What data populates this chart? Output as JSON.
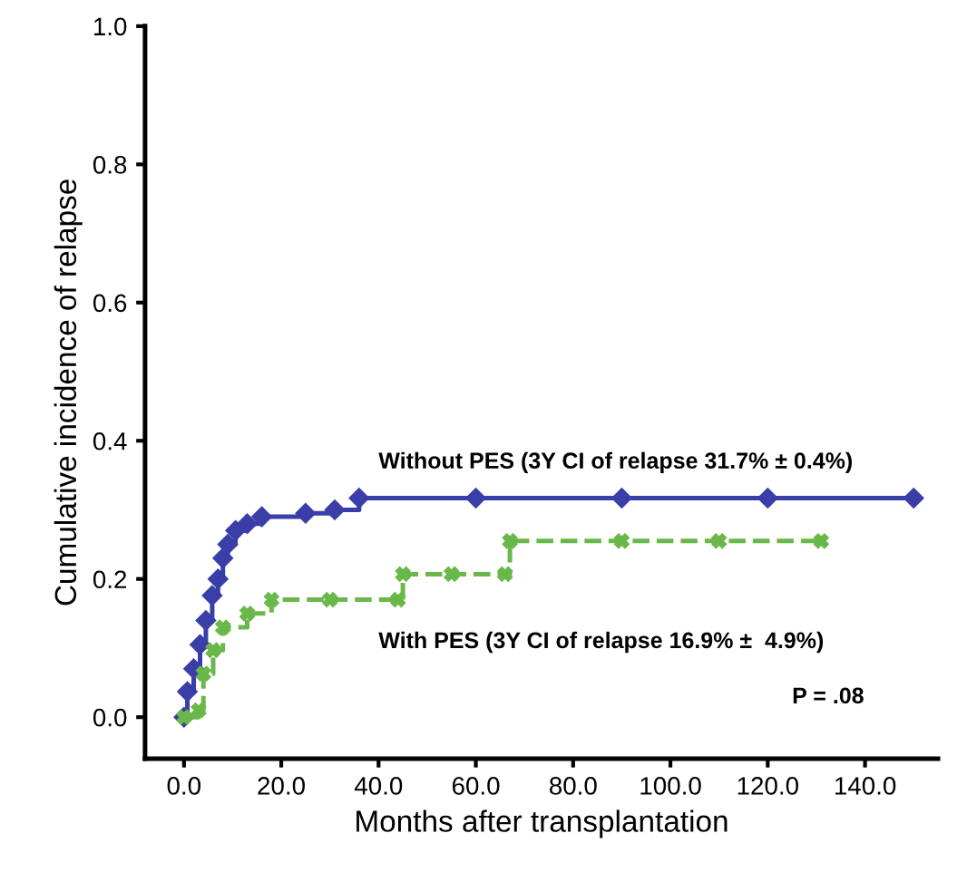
{
  "chart_data": {
    "type": "step",
    "xlabel": "Months after transplantation",
    "ylabel": "Cumulative incidence of relapse",
    "xlim": [
      -8,
      155
    ],
    "ylim": [
      -0.06,
      1.0
    ],
    "xticks": [
      {
        "value": 0,
        "label": "0.0"
      },
      {
        "value": 20,
        "label": "20.0"
      },
      {
        "value": 40,
        "label": "40.0"
      },
      {
        "value": 60,
        "label": "60.0"
      },
      {
        "value": 80,
        "label": "80.0"
      },
      {
        "value": 100,
        "label": "100.0"
      },
      {
        "value": 120,
        "label": "120.0"
      },
      {
        "value": 140,
        "label": "140.0"
      }
    ],
    "yticks": [
      {
        "value": 0,
        "label": "0.0"
      },
      {
        "value": 0.2,
        "label": "0.2"
      },
      {
        "value": 0.4,
        "label": "0.4"
      },
      {
        "value": 0.6,
        "label": "0.6"
      },
      {
        "value": 0.8,
        "label": "0.8"
      },
      {
        "value": 1.0,
        "label": "1.0"
      }
    ],
    "grid": false,
    "legend": false,
    "series": [
      {
        "name": "Without PES (3Y CI of relapse 31.7% ± 0.4%)",
        "color": "#3a3ea8",
        "marker": "diamond",
        "line_style": "solid",
        "x": [
          0,
          0.7,
          2,
          3.3,
          4.5,
          5.8,
          7,
          8,
          9,
          10.6,
          13,
          16,
          25,
          31,
          36,
          60,
          90,
          120,
          150
        ],
        "values": [
          0,
          0.037,
          0.07,
          0.105,
          0.14,
          0.176,
          0.2,
          0.23,
          0.25,
          0.27,
          0.28,
          0.29,
          0.295,
          0.3,
          0.317,
          0.317,
          0.317,
          0.317,
          0.317
        ]
      },
      {
        "name": "With PES (3Y CI of relapse 16.9% ±  4.9%)",
        "color": "#6ab84a",
        "marker": "cross",
        "line_style": "dashed",
        "x": [
          0,
          3,
          4,
          6,
          8,
          13,
          18,
          30,
          44,
          45,
          55,
          66,
          67,
          90,
          110,
          131
        ],
        "values": [
          0,
          0.01,
          0.063,
          0.097,
          0.13,
          0.15,
          0.17,
          0.17,
          0.17,
          0.207,
          0.207,
          0.207,
          0.255,
          0.255,
          0.255,
          0.255
        ]
      }
    ],
    "annotations": [
      "P = .08"
    ]
  }
}
